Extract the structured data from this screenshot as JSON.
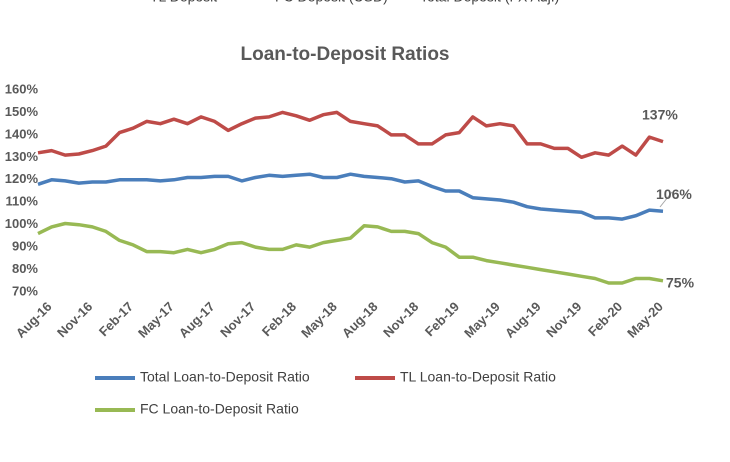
{
  "header_legend": [
    "TL Deposit",
    "FC Deposit (USD)",
    "Total Deposit (FX Adj.)"
  ],
  "chart_data": {
    "type": "line",
    "title": "Loan-to-Deposit  Ratios",
    "categories": [
      "Aug-16",
      null,
      null,
      "Nov-16",
      null,
      null,
      "Feb-17",
      null,
      null,
      "May-17",
      null,
      null,
      "Aug-17",
      null,
      null,
      "Nov-17",
      null,
      null,
      "Feb-18",
      null,
      null,
      "May-18",
      null,
      null,
      "Aug-18",
      null,
      null,
      "Nov-18",
      null,
      null,
      "Feb-19",
      null,
      null,
      "May-19",
      null,
      null,
      "Aug-19",
      null,
      null,
      "Nov-19",
      null,
      null,
      "Feb-20",
      null,
      null,
      "May-20",
      null
    ],
    "series": [
      {
        "name": "Total Loan-to-Deposit Ratio",
        "color": "#4a7ebb",
        "values": [
          118,
          120,
          119.5,
          118.5,
          119,
          119,
          120,
          120,
          120,
          119.5,
          120,
          121,
          121,
          121.5,
          121.5,
          119.5,
          121,
          122,
          121.5,
          122,
          122.5,
          121,
          121,
          122.5,
          121.5,
          121,
          120.5,
          119,
          119.5,
          117,
          115,
          115,
          112,
          111.5,
          111,
          110,
          108,
          107,
          106.5,
          106,
          105.5,
          103,
          103,
          102.5,
          104,
          106.5,
          106
        ]
      },
      {
        "name": "TL Loan-to-Deposit Ratio",
        "color": "#be4b48",
        "values": [
          132,
          133,
          131,
          131.5,
          133,
          135,
          141,
          143,
          146,
          145,
          147,
          145,
          148,
          146,
          142,
          145,
          147.5,
          148,
          150,
          148.5,
          146.5,
          149,
          150,
          146,
          145,
          144,
          140,
          140,
          136,
          136,
          140,
          141,
          148,
          144,
          145,
          144,
          136,
          136,
          134,
          134,
          130,
          132,
          131,
          135,
          131,
          139,
          137
        ]
      },
      {
        "name": "FC Loan-to-Deposit Ratio",
        "color": "#98b954",
        "values": [
          96,
          99,
          100.5,
          100,
          99,
          97,
          93,
          91,
          88,
          88,
          87.5,
          89,
          87.5,
          89,
          91.5,
          92,
          90,
          89,
          89,
          91,
          90,
          92,
          93,
          94,
          99.5,
          99,
          97,
          97,
          96,
          92,
          90,
          85.5,
          85.5,
          84,
          83,
          82,
          81,
          80,
          79,
          78,
          77,
          76,
          74,
          74,
          76,
          76,
          75
        ]
      }
    ],
    "ylim": [
      70,
      160
    ],
    "yticks": [
      {
        "value": 70,
        "label": "70%"
      },
      {
        "value": 80,
        "label": "80%"
      },
      {
        "value": 90,
        "label": "90%"
      },
      {
        "value": 100,
        "label": "100%"
      },
      {
        "value": 110,
        "label": "110%"
      },
      {
        "value": 120,
        "label": "120%"
      },
      {
        "value": 130,
        "label": "130%"
      },
      {
        "value": 140,
        "label": "140%"
      },
      {
        "value": 150,
        "label": "150%"
      },
      {
        "value": 160,
        "label": "160%"
      }
    ],
    "annotations": [
      {
        "value": 137,
        "label": "137%"
      },
      {
        "value": 106,
        "label": "106%"
      },
      {
        "value": 75,
        "label": "75%"
      }
    ],
    "grid": false
  }
}
